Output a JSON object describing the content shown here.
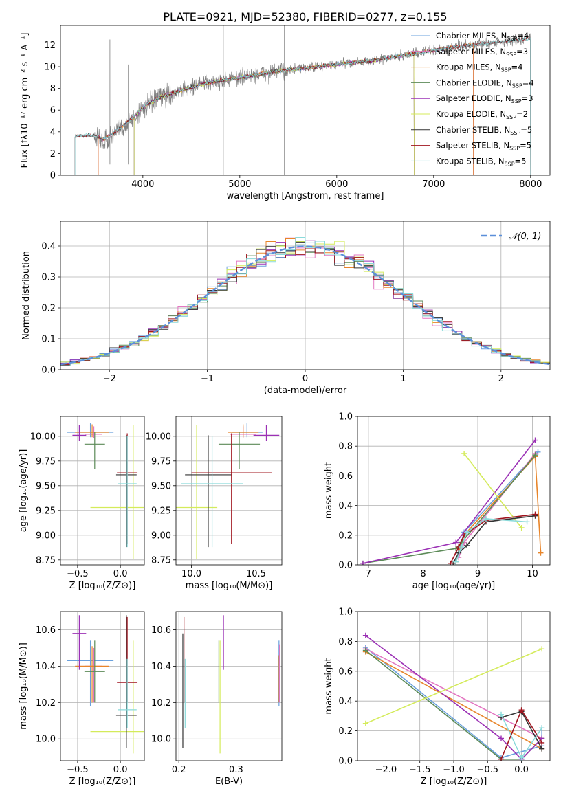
{
  "colors": {
    "chabrier_miles": "#6aa0dc",
    "salpeter_miles": "#e377c2",
    "kroupa_miles": "#e8852a",
    "chabrier_elodie": "#5b8a57",
    "salpeter_elodie": "#9b30b5",
    "kroupa_elodie": "#d4eb5a",
    "chabrier_stelib": "#333333",
    "salpeter_stelib": "#a0141e",
    "kroupa_stelib": "#8adada",
    "data": "#808080",
    "normal": "#5b8fd9"
  },
  "chart_data": [
    {
      "id": "spectrum",
      "type": "line",
      "title": "PLATE=0921, MJD=52380, FIBERID=0277, z=0.155",
      "xlabel": "wavelength [Angstrom, rest frame]",
      "ylabel": "Flux [fλ10⁻¹⁷ erg cm⁻² s⁻¹ A⁻¹]",
      "xlim": [
        3150,
        8200
      ],
      "ylim": [
        0,
        13.8
      ],
      "xticks": [
        4000,
        5000,
        6000,
        7000,
        8000
      ],
      "yticks": [
        0,
        2,
        4,
        6,
        8,
        10,
        12
      ],
      "legend_position": "top-right",
      "legend": [
        {
          "name": "Chabrier MILES",
          "nssp": "4",
          "color_key": "chabrier_miles"
        },
        {
          "name": "Salpeter MILES",
          "nssp": "3",
          "color_key": "salpeter_miles"
        },
        {
          "name": "Kroupa MILES",
          "nssp": "4",
          "color_key": "kroupa_miles"
        },
        {
          "name": "Chabrier ELODIE",
          "nssp": "4",
          "color_key": "chabrier_elodie"
        },
        {
          "name": "Salpeter ELODIE",
          "nssp": "3",
          "color_key": "salpeter_elodie"
        },
        {
          "name": "Kroupa ELODIE",
          "nssp": "2",
          "color_key": "kroupa_elodie"
        },
        {
          "name": "Chabrier STELIB",
          "nssp": "5",
          "color_key": "chabrier_stelib"
        },
        {
          "name": "Salpeter STELIB",
          "nssp": "5",
          "color_key": "salpeter_stelib"
        },
        {
          "name": "Kroupa STELIB",
          "nssp": "5",
          "color_key": "kroupa_stelib"
        }
      ],
      "data_trend": {
        "x": [
          3300,
          3500,
          3600,
          3700,
          3800,
          3900,
          4000,
          4200,
          4400,
          4600,
          4800,
          5000,
          5200,
          5400,
          5600,
          5800,
          6000,
          6200,
          6400,
          6600,
          6800,
          7000,
          7200,
          7400,
          7600,
          7800,
          8000
        ],
        "y": [
          3.6,
          3.6,
          3.0,
          3.8,
          4.5,
          5.2,
          6.2,
          7.3,
          7.8,
          8.4,
          8.7,
          9.0,
          9.3,
          9.6,
          9.8,
          10.0,
          10.2,
          10.4,
          10.6,
          10.9,
          11.2,
          11.5,
          11.8,
          12.0,
          12.2,
          12.4,
          12.6
        ]
      },
      "model_trend": {
        "x": [
          3300,
          3500,
          3600,
          3700,
          3800,
          3900,
          4000,
          4200,
          4400,
          4600,
          4800,
          5000,
          5200,
          5400,
          5600,
          5800,
          6000,
          6200,
          6400,
          6600,
          6800,
          7000,
          7200,
          7400,
          7600,
          7800,
          8000
        ],
        "y": [
          3.6,
          3.7,
          3.3,
          3.9,
          4.6,
          5.3,
          6.3,
          7.3,
          7.8,
          8.4,
          8.7,
          9.0,
          9.3,
          9.6,
          9.8,
          10.0,
          10.2,
          10.4,
          10.6,
          10.9,
          11.2,
          11.5,
          11.8,
          12.0,
          12.2,
          12.4,
          12.6
        ]
      },
      "model_ranges": {
        "chabrier_miles": [
          3540,
          7410
        ],
        "salpeter_miles": [
          3540,
          7410
        ],
        "kroupa_miles": [
          3540,
          7410
        ],
        "chabrier_elodie": [
          3910,
          6800
        ],
        "salpeter_elodie": [
          3910,
          6800
        ],
        "kroupa_elodie": [
          3910,
          6800
        ],
        "chabrier_stelib": [
          3300,
          8000
        ],
        "salpeter_stelib": [
          3300,
          8000
        ],
        "kroupa_stelib": [
          3300,
          8000
        ]
      }
    },
    {
      "id": "residuals",
      "type": "histogram",
      "xlabel": "(data-model)/error",
      "ylabel": "Normed distribution",
      "xlim": [
        -2.5,
        2.5
      ],
      "ylim": [
        0,
        0.48
      ],
      "xticks": [
        -2,
        -1,
        0,
        1,
        2
      ],
      "yticks": [
        0.0,
        0.1,
        0.2,
        0.3,
        0.4
      ],
      "bin_width": 0.1,
      "legend_position": "top-right",
      "normal_label": "𝒩(0, 1)",
      "normal_mean": 0,
      "normal_sigma": 1
    },
    {
      "id": "age_vs_z",
      "type": "scatter",
      "xlabel": "Z [log₁₀(Z/Z⊙)]",
      "ylabel": "age  [log₁₀(age/yr)]",
      "xlim": [
        -0.7,
        0.28
      ],
      "ylim": [
        8.7,
        10.2
      ],
      "xticks": [
        -0.5,
        0.0
      ],
      "yticks": [
        8.75,
        9.0,
        9.25,
        9.5,
        9.75,
        10.0
      ],
      "points": [
        {
          "color_key": "chabrier_miles",
          "x": -0.35,
          "y": 10.04,
          "xerr": 0.27,
          "yerr": [
            0.05,
            0.09
          ]
        },
        {
          "color_key": "salpeter_miles",
          "x": -0.31,
          "y": 10.02,
          "xerr": 0.1,
          "yerr": [
            0.04,
            0.08
          ]
        },
        {
          "color_key": "kroupa_miles",
          "x": -0.33,
          "y": 10.04,
          "xerr": 0.2,
          "yerr": [
            0.05,
            0.08
          ]
        },
        {
          "color_key": "chabrier_elodie",
          "x": -0.3,
          "y": 9.92,
          "xerr": 0.12,
          "yerr": [
            0.25,
            0.12
          ]
        },
        {
          "color_key": "salpeter_elodie",
          "x": -0.48,
          "y": 10.01,
          "xerr": 0.08,
          "yerr": [
            0.06,
            0.1
          ]
        },
        {
          "color_key": "kroupa_elodie",
          "x": 0.15,
          "y": 9.28,
          "xerr": 0.5,
          "yerr": [
            0.52,
            0.83
          ]
        },
        {
          "color_key": "chabrier_stelib",
          "x": 0.07,
          "y": 9.61,
          "xerr": 0.12,
          "yerr": [
            0.73,
            0.4
          ]
        },
        {
          "color_key": "salpeter_stelib",
          "x": 0.08,
          "y": 9.63,
          "xerr": 0.12,
          "yerr": [
            0.72,
            0.4
          ]
        },
        {
          "color_key": "kroupa_stelib",
          "x": 0.08,
          "y": 9.52,
          "xerr": 0.11,
          "yerr": [
            0.64,
            0.48
          ]
        }
      ]
    },
    {
      "id": "age_vs_mass",
      "type": "scatter",
      "xlabel": "mass [log₁₀(M/M⊙)]",
      "ylabel": "",
      "xlim": [
        9.88,
        10.7
      ],
      "ylim": [
        8.7,
        10.2
      ],
      "xticks": [
        10.0,
        10.5
      ],
      "yticks": [
        8.75,
        9.0,
        9.25,
        9.5,
        9.75,
        10.0
      ],
      "points": [
        {
          "color_key": "chabrier_miles",
          "x": 10.43,
          "y": 10.04,
          "xerr": 0.12,
          "yerr": [
            0.05,
            0.09
          ]
        },
        {
          "color_key": "salpeter_miles",
          "x": 10.4,
          "y": 10.02,
          "xerr": 0.1,
          "yerr": [
            0.04,
            0.08
          ]
        },
        {
          "color_key": "kroupa_miles",
          "x": 10.4,
          "y": 10.04,
          "xerr": 0.12,
          "yerr": [
            0.05,
            0.08
          ]
        },
        {
          "color_key": "chabrier_elodie",
          "x": 10.37,
          "y": 9.92,
          "xerr": 0.16,
          "yerr": [
            0.25,
            0.12
          ]
        },
        {
          "color_key": "salpeter_elodie",
          "x": 10.58,
          "y": 10.01,
          "xerr": 0.1,
          "yerr": [
            0.06,
            0.1
          ]
        },
        {
          "color_key": "kroupa_elodie",
          "x": 10.04,
          "y": 9.28,
          "xerr": 0.16,
          "yerr": [
            0.52,
            0.83
          ]
        },
        {
          "color_key": "chabrier_stelib",
          "x": 10.13,
          "y": 9.61,
          "xerr": 0.18,
          "yerr": [
            0.73,
            0.4
          ]
        },
        {
          "color_key": "salpeter_stelib",
          "x": 10.31,
          "y": 9.63,
          "xerr": 0.31,
          "yerr": [
            0.72,
            0.4
          ]
        },
        {
          "color_key": "kroupa_stelib",
          "x": 10.16,
          "y": 9.52,
          "xerr": 0.24,
          "yerr": [
            0.64,
            0.48
          ]
        }
      ]
    },
    {
      "id": "weight_vs_age",
      "type": "line",
      "xlabel": "age  [log₁₀(age/yr)]",
      "ylabel": "mass weight",
      "xlim": [
        6.8,
        10.32
      ],
      "ylim": [
        0,
        1.0
      ],
      "xticks": [
        7,
        8,
        9,
        10
      ],
      "yticks": [
        0.0,
        0.2,
        0.4,
        0.6,
        0.8,
        1.0
      ],
      "series": [
        {
          "color_key": "chabrier_miles",
          "x": [
            8.6,
            8.75,
            10.1
          ],
          "y": [
            0.02,
            0.22,
            0.76
          ]
        },
        {
          "color_key": "salpeter_miles",
          "x": [
            8.65,
            8.75,
            10.05
          ],
          "y": [
            0.05,
            0.15,
            0.75
          ]
        },
        {
          "color_key": "kroupa_miles",
          "x": [
            8.6,
            8.75,
            10.05,
            10.15
          ],
          "y": [
            0.02,
            0.2,
            0.73,
            0.08
          ]
        },
        {
          "color_key": "chabrier_elodie",
          "x": [
            6.9,
            8.6,
            8.7,
            10.05
          ],
          "y": [
            0.01,
            0.11,
            0.15,
            0.74
          ]
        },
        {
          "color_key": "salpeter_elodie",
          "x": [
            6.9,
            8.6,
            10.05
          ],
          "y": [
            0.01,
            0.15,
            0.84
          ]
        },
        {
          "color_key": "kroupa_elodie",
          "x": [
            8.75,
            9.8
          ],
          "y": [
            0.75,
            0.25
          ]
        },
        {
          "color_key": "chabrier_stelib",
          "x": [
            8.55,
            8.65,
            8.8,
            9.15,
            10.05
          ],
          "y": [
            0.01,
            0.08,
            0.13,
            0.29,
            0.33
          ]
        },
        {
          "color_key": "salpeter_stelib",
          "x": [
            8.5,
            8.65,
            8.75,
            9.15,
            10.05
          ],
          "y": [
            0.01,
            0.12,
            0.2,
            0.3,
            0.34
          ]
        },
        {
          "color_key": "kroupa_stelib",
          "x": [
            8.6,
            8.7,
            8.8,
            9.15,
            9.9
          ],
          "y": [
            0.02,
            0.12,
            0.22,
            0.31,
            0.29
          ]
        }
      ]
    },
    {
      "id": "mass_vs_z",
      "type": "scatter",
      "xlabel": "Z [log₁₀(Z/Z⊙)]",
      "ylabel": "mass [log₁₀(M/M⊙)]",
      "xlim": [
        -0.7,
        0.28
      ],
      "ylim": [
        9.88,
        10.7
      ],
      "xticks": [
        -0.5,
        0.0
      ],
      "yticks": [
        10.0,
        10.2,
        10.4,
        10.6
      ],
      "points": [
        {
          "color_key": "chabrier_miles",
          "x": -0.35,
          "y": 10.43,
          "xerr": 0.27,
          "yerr": [
            0.25,
            0.11
          ]
        },
        {
          "color_key": "salpeter_miles",
          "x": -0.31,
          "y": 10.4,
          "xerr": 0.1,
          "yerr": [
            0.2,
            0.1
          ]
        },
        {
          "color_key": "kroupa_miles",
          "x": -0.33,
          "y": 10.4,
          "xerr": 0.2,
          "yerr": [
            0.2,
            0.11
          ]
        },
        {
          "color_key": "chabrier_elodie",
          "x": -0.3,
          "y": 10.37,
          "xerr": 0.12,
          "yerr": [
            0.17,
            0.17
          ]
        },
        {
          "color_key": "salpeter_elodie",
          "x": -0.48,
          "y": 10.58,
          "xerr": 0.08,
          "yerr": [
            0.2,
            0.1
          ]
        },
        {
          "color_key": "kroupa_elodie",
          "x": 0.15,
          "y": 10.04,
          "xerr": 0.5,
          "yerr": [
            0.12,
            0.5
          ]
        },
        {
          "color_key": "chabrier_stelib",
          "x": 0.07,
          "y": 10.13,
          "xerr": 0.12,
          "yerr": [
            0.18,
            0.55
          ]
        },
        {
          "color_key": "salpeter_stelib",
          "x": 0.08,
          "y": 10.31,
          "xerr": 0.12,
          "yerr": [
            0.11,
            0.36
          ]
        },
        {
          "color_key": "kroupa_stelib",
          "x": 0.08,
          "y": 10.16,
          "xerr": 0.11,
          "yerr": [
            0.1,
            0.28
          ]
        }
      ]
    },
    {
      "id": "mass_vs_ebv",
      "type": "scatter",
      "xlabel": "E(B-V)",
      "ylabel": "",
      "xlim": [
        0.195,
        0.38
      ],
      "ylim": [
        9.88,
        10.7
      ],
      "xticks": [
        0.2,
        0.3
      ],
      "yticks": [
        10.0,
        10.2,
        10.4,
        10.6
      ],
      "points": [
        {
          "color_key": "chabrier_miles",
          "x": 0.375,
          "y": 10.43,
          "xerr": 0,
          "yerr": [
            0.25,
            0.11
          ]
        },
        {
          "color_key": "salpeter_miles",
          "x": 0.376,
          "y": 10.4,
          "xerr": 0,
          "yerr": [
            0.2,
            0.12
          ]
        },
        {
          "color_key": "kroupa_miles",
          "x": 0.374,
          "y": 10.4,
          "xerr": 0,
          "yerr": [
            0.2,
            0.06
          ]
        },
        {
          "color_key": "chabrier_elodie",
          "x": 0.27,
          "y": 10.37,
          "xerr": 0,
          "yerr": [
            0.17,
            0.17
          ]
        },
        {
          "color_key": "salpeter_elodie",
          "x": 0.278,
          "y": 10.58,
          "xerr": 0,
          "yerr": [
            0.2,
            0.1
          ]
        },
        {
          "color_key": "kroupa_elodie",
          "x": 0.272,
          "y": 10.04,
          "xerr": 0,
          "yerr": [
            0.12,
            0.5
          ]
        },
        {
          "color_key": "chabrier_stelib",
          "x": 0.207,
          "y": 10.13,
          "xerr": 0,
          "yerr": [
            0.18,
            0.45
          ]
        },
        {
          "color_key": "salpeter_stelib",
          "x": 0.209,
          "y": 10.31,
          "xerr": 0,
          "yerr": [
            0.11,
            0.36
          ]
        },
        {
          "color_key": "kroupa_stelib",
          "x": 0.211,
          "y": 10.16,
          "xerr": 0,
          "yerr": [
            0.1,
            0.28
          ]
        }
      ]
    },
    {
      "id": "weight_vs_z",
      "type": "line",
      "xlabel": "Z [log₁₀(Z/Z⊙)]",
      "ylabel": "mass weight",
      "xlim": [
        -2.42,
        0.42
      ],
      "ylim": [
        0,
        1.0
      ],
      "xticks": [
        -2.0,
        -1.5,
        -1.0,
        -0.5,
        0.0
      ],
      "yticks": [
        0.0,
        0.2,
        0.4,
        0.6,
        0.8,
        1.0
      ],
      "series": [
        {
          "color_key": "chabrier_miles",
          "x": [
            -2.3,
            -0.3,
            0.3,
            0.3
          ],
          "y": [
            0.76,
            0.02,
            0.1,
            0.22
          ]
        },
        {
          "color_key": "salpeter_miles",
          "x": [
            -2.3,
            0.3
          ],
          "y": [
            0.75,
            0.15
          ]
        },
        {
          "color_key": "kroupa_miles",
          "x": [
            -2.3,
            0.3
          ],
          "y": [
            0.73,
            0.08
          ]
        },
        {
          "color_key": "chabrier_elodie",
          "x": [
            -2.3,
            -0.3,
            0.0,
            0.3
          ],
          "y": [
            0.74,
            0.01,
            0.01,
            0.15
          ]
        },
        {
          "color_key": "salpeter_elodie",
          "x": [
            -2.3,
            -0.3,
            0.0,
            0.3
          ],
          "y": [
            0.84,
            0.15,
            0.01,
            0.15
          ]
        },
        {
          "color_key": "kroupa_elodie",
          "x": [
            -2.3,
            0.3
          ],
          "y": [
            0.25,
            0.75
          ]
        },
        {
          "color_key": "chabrier_stelib",
          "x": [
            -0.3,
            0.0,
            0.3
          ],
          "y": [
            0.29,
            0.33,
            0.08
          ]
        },
        {
          "color_key": "salpeter_stelib",
          "x": [
            -0.3,
            0.0,
            0.3
          ],
          "y": [
            0.01,
            0.34,
            0.12
          ]
        },
        {
          "color_key": "kroupa_stelib",
          "x": [
            -0.3,
            0.0,
            0.3
          ],
          "y": [
            0.31,
            0.02,
            0.22
          ]
        }
      ]
    }
  ]
}
